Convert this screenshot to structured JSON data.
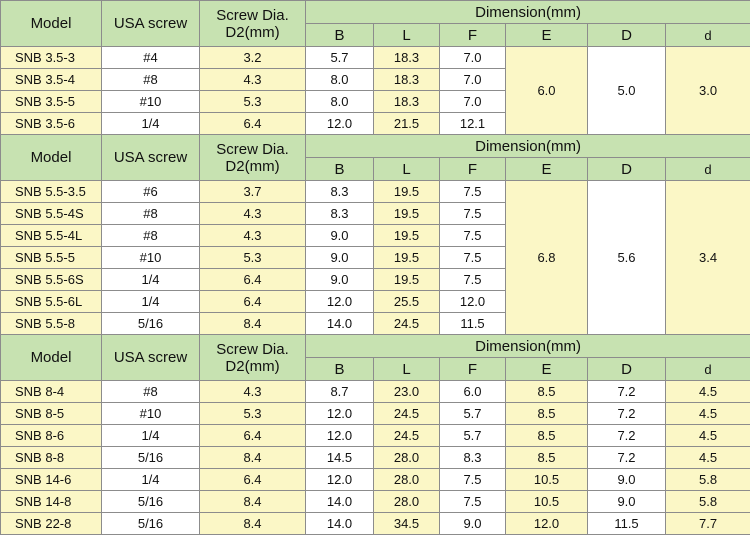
{
  "headers": {
    "model": "Model",
    "usa_screw": "USA screw",
    "screw_dia_line1": "Screw Dia.",
    "screw_dia_line2": "D2(mm)",
    "dimension": "Dimension(mm)",
    "b": "B",
    "l": "L",
    "f": "F",
    "e": "E",
    "d_upper": "D",
    "d_lower": "d"
  },
  "sections": [
    {
      "rows": [
        {
          "model": "SNB 3.5-3",
          "usa": "#4",
          "dia": "3.2",
          "b": "5.7",
          "l": "18.3",
          "f": "7.0"
        },
        {
          "model": "SNB 3.5-4",
          "usa": "#8",
          "dia": "4.3",
          "b": "8.0",
          "l": "18.3",
          "f": "7.0"
        },
        {
          "model": "SNB 3.5-5",
          "usa": "#10",
          "dia": "5.3",
          "b": "8.0",
          "l": "18.3",
          "f": "7.0"
        },
        {
          "model": "SNB 3.5-6",
          "usa": "1/4",
          "dia": "6.4",
          "b": "12.0",
          "l": "21.5",
          "f": "12.1"
        }
      ],
      "e": "6.0",
      "D": "5.0",
      "d": "3.0"
    },
    {
      "rows": [
        {
          "model": "SNB 5.5-3.5",
          "usa": "#6",
          "dia": "3.7",
          "b": "8.3",
          "l": "19.5",
          "f": "7.5"
        },
        {
          "model": "SNB 5.5-4S",
          "usa": "#8",
          "dia": "4.3",
          "b": "8.3",
          "l": "19.5",
          "f": "7.5"
        },
        {
          "model": "SNB 5.5-4L",
          "usa": "#8",
          "dia": "4.3",
          "b": "9.0",
          "l": "19.5",
          "f": "7.5"
        },
        {
          "model": "SNB 5.5-5",
          "usa": "#10",
          "dia": "5.3",
          "b": "9.0",
          "l": "19.5",
          "f": "7.5"
        },
        {
          "model": "SNB 5.5-6S",
          "usa": "1/4",
          "dia": "6.4",
          "b": "9.0",
          "l": "19.5",
          "f": "7.5"
        },
        {
          "model": "SNB 5.5-6L",
          "usa": "1/4",
          "dia": "6.4",
          "b": "12.0",
          "l": "25.5",
          "f": "12.0"
        },
        {
          "model": "SNB 5.5-8",
          "usa": "5/16",
          "dia": "8.4",
          "b": "14.0",
          "l": "24.5",
          "f": "11.5"
        }
      ],
      "e": "6.8",
      "D": "5.6",
      "d": "3.4"
    },
    {
      "rows": [
        {
          "model": "SNB 8-4",
          "usa": "#8",
          "dia": "4.3",
          "b": "8.7",
          "l": "23.0",
          "f": "6.0",
          "e": "8.5",
          "D": "7.2",
          "d": "4.5"
        },
        {
          "model": "SNB 8-5",
          "usa": "#10",
          "dia": "5.3",
          "b": "12.0",
          "l": "24.5",
          "f": "5.7",
          "e": "8.5",
          "D": "7.2",
          "d": "4.5"
        },
        {
          "model": "SNB 8-6",
          "usa": "1/4",
          "dia": "6.4",
          "b": "12.0",
          "l": "24.5",
          "f": "5.7",
          "e": "8.5",
          "D": "7.2",
          "d": "4.5"
        },
        {
          "model": "SNB 8-8",
          "usa": "5/16",
          "dia": "8.4",
          "b": "14.5",
          "l": "28.0",
          "f": "8.3",
          "e": "8.5",
          "D": "7.2",
          "d": "4.5"
        },
        {
          "model": "SNB 14-6",
          "usa": "1/4",
          "dia": "6.4",
          "b": "12.0",
          "l": "28.0",
          "f": "7.5",
          "e": "10.5",
          "D": "9.0",
          "d": "5.8"
        },
        {
          "model": "SNB 14-8",
          "usa": "5/16",
          "dia": "8.4",
          "b": "14.0",
          "l": "28.0",
          "f": "7.5",
          "e": "10.5",
          "D": "9.0",
          "d": "5.8"
        },
        {
          "model": "SNB 22-8",
          "usa": "5/16",
          "dia": "8.4",
          "b": "14.0",
          "l": "34.5",
          "f": "9.0",
          "e": "12.0",
          "D": "11.5",
          "d": "7.7"
        }
      ]
    }
  ]
}
